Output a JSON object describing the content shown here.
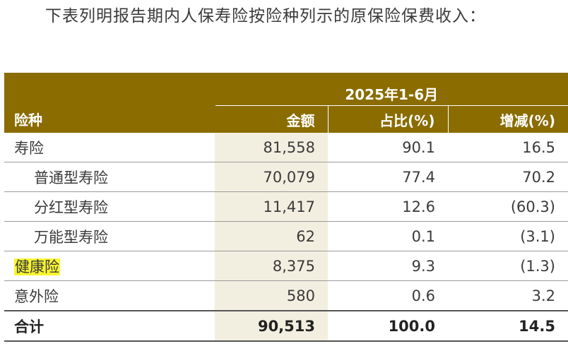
{
  "intro": "下表列明报告期内人保寿险按险种列示的原保险保费收入：",
  "table": {
    "period": "2025年1-6月",
    "headers": {
      "type": "险种",
      "amount": "金额",
      "share": "占比(%)",
      "change": "增减(%)"
    },
    "rows": [
      {
        "type": "寿险",
        "amount": "81,558",
        "share": "90.1",
        "change": "16.5"
      },
      {
        "type": "普通型寿险",
        "amount": "70,079",
        "share": "77.4",
        "change": "70.2"
      },
      {
        "type": "分红型寿险",
        "amount": "11,417",
        "share": "12.6",
        "change": "(60.3)"
      },
      {
        "type": "万能型寿险",
        "amount": "62",
        "share": "0.1",
        "change": "(3.1)"
      },
      {
        "type": "健康险",
        "amount": "8,375",
        "share": "9.3",
        "change": "(1.3)"
      },
      {
        "type": "意外险",
        "amount": "580",
        "share": "0.6",
        "change": "3.2"
      },
      {
        "type": "合计",
        "amount": "90,513",
        "share": "100.0",
        "change": "14.5"
      }
    ]
  },
  "colors": {
    "header_bg": "#8a6c00",
    "amount_bg": "#f3efe0",
    "highlight": "#f8f530"
  }
}
